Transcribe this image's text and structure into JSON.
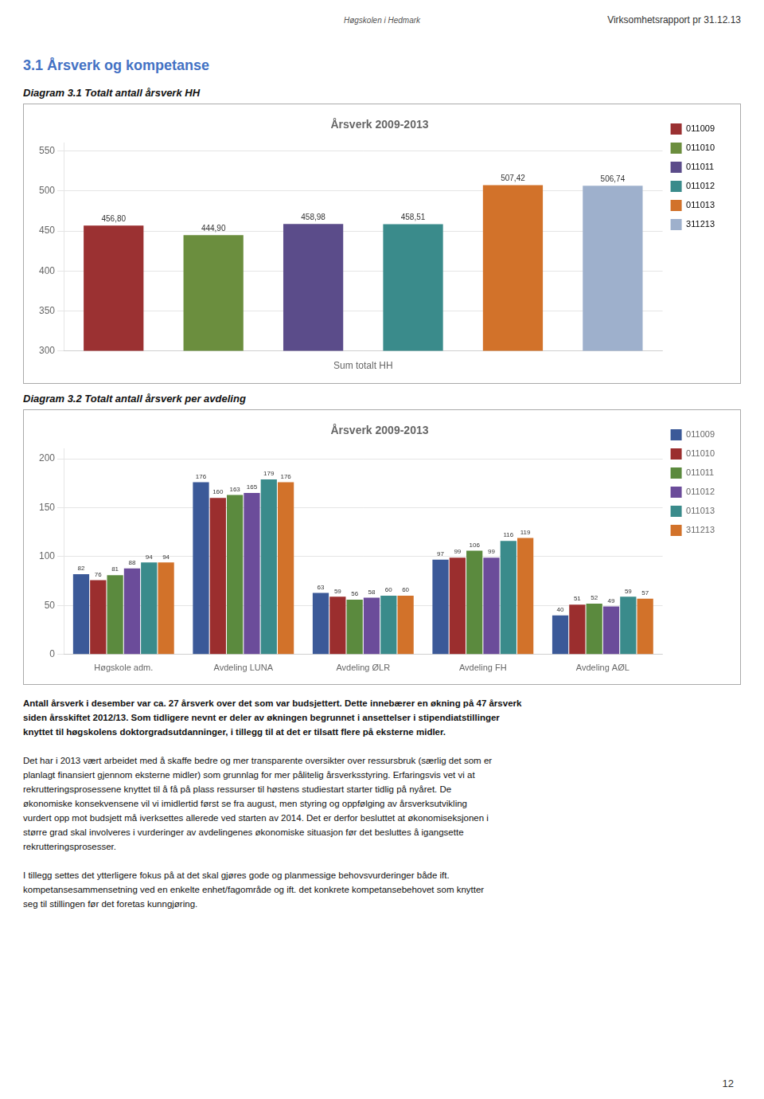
{
  "page": {
    "logo_text": "Høgskolen i Hedmark",
    "page_title": "Virksomhetsrapport pr 31.12.13",
    "section_title": "3.1  Årsverk og kompetanse",
    "body_bold_lines": [
      "Antall årsverk i desember var ca. 27 årsverk over det som var budsjettert.  Dette innebærer en økning på 47 årsverk",
      "siden årsskiftet 2012/13. Som tidligere nevnt er deler av økningen begrunnet i ansettelser i stipendiatstillinger",
      "knyttet til høgskolens doktorgradsutdanninger, i tillegg til at det er tilsatt flere på eksterne midler."
    ],
    "body_paragraphs": [
      [
        "Det har i 2013 vært arbeidet med å skaffe bedre og mer transparente oversikter over ressursbruk (særlig det som er",
        "planlagt finansiert gjennom eksterne midler) som grunnlag for mer pålitelig årsverksstyring. Erfaringsvis vet vi at",
        "rekrutteringsprosessene knyttet til å få på plass ressurser til høstens studiestart starter tidlig på nyåret. De",
        "økonomiske konsekvensene vil vi imidlertid først se fra august, men styring og oppfølging av årsverksutvikling",
        "vurdert opp mot budsjett må iverksettes allerede ved starten av 2014. Det er derfor besluttet at økonomiseksjonen i",
        "større grad skal involveres i vurderinger av avdelingenes økonomiske situasjon før det besluttes å igangsette",
        "rekrutteringsprosesser."
      ],
      [
        "I tillegg settes det ytterligere fokus på at det skal gjøres gode og planmessige behovsvurderinger både ift.",
        "kompetansesammensetning ved en enkelte enhet/fagområde og ift. det konkrete kompetansebehovet som knytter",
        "seg til stillingen før det foretas kunngjøring."
      ]
    ],
    "page_number": "12"
  },
  "chart_data": [
    {
      "type": "bar",
      "subtitle": "Diagram 3.1 Totalt antall årsverk HH",
      "title": "Årsverk 2009-2013",
      "xlabel": "Sum totalt HH",
      "categories": [
        "011009",
        "011010",
        "011011",
        "011012",
        "011013",
        "311213"
      ],
      "values": [
        456.8,
        444.9,
        458.98,
        458.51,
        507.42,
        506.74
      ],
      "value_labels": [
        "456,80",
        "444,90",
        "458,98",
        "458,51",
        "507,42",
        "506,74"
      ],
      "colors": [
        "#9B3132",
        "#6B8E3E",
        "#5B4C8A",
        "#3A8B8B",
        "#D2722A",
        "#9EB0CC"
      ],
      "ylim": [
        300,
        560
      ],
      "yticks": [
        300,
        350,
        400,
        450,
        500,
        550
      ],
      "grid": true,
      "legend": "right",
      "data_labels": true,
      "tick_labels": "y"
    },
    {
      "type": "bar",
      "subtitle": "Diagram 3.2 Totalt antall årsverk per avdeling",
      "title": "Årsverk 2009-2013",
      "categories": [
        "Høgskole adm.",
        "Avdeling LUNA",
        "Avdeling ØLR",
        "Avdeling FH",
        "Avdeling AØL"
      ],
      "series": [
        {
          "name": "011009",
          "color": "#3B5998",
          "values": [
            82,
            176,
            63,
            97,
            40
          ]
        },
        {
          "name": "011010",
          "color": "#9B2E2E",
          "values": [
            76,
            160,
            59,
            99,
            51
          ]
        },
        {
          "name": "011011",
          "color": "#5B8A3E",
          "values": [
            81,
            163,
            56,
            106,
            52
          ]
        },
        {
          "name": "011012",
          "color": "#6B4C9A",
          "values": [
            88,
            165,
            58,
            99,
            49
          ]
        },
        {
          "name": "011013",
          "color": "#3A8B8B",
          "values": [
            94,
            179,
            60,
            116,
            59
          ]
        },
        {
          "name": "311213",
          "color": "#D2722A",
          "values": [
            94,
            176,
            60,
            119,
            57
          ]
        }
      ],
      "ylim": [
        0,
        210
      ],
      "yticks": [
        0,
        50,
        100,
        150,
        200
      ],
      "grid": true,
      "legend": "right",
      "data_labels": true
    }
  ]
}
